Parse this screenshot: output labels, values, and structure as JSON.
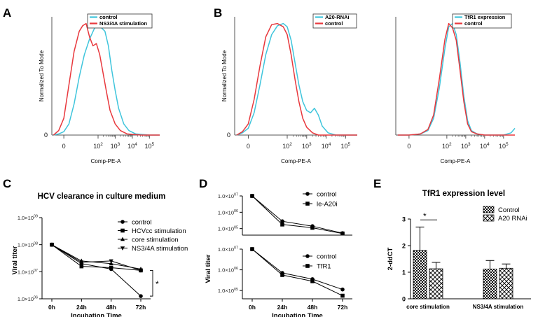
{
  "panel_labels": {
    "A": "A",
    "B": "B",
    "C": "C",
    "D": "D",
    "E": "E"
  },
  "colors": {
    "control_red": "#e8383d",
    "treatment_cyan": "#3fc5dc",
    "axis": "#555555",
    "ink": "#000000"
  },
  "chart_data": [
    {
      "id": "A",
      "type": "line",
      "title": "",
      "xlabel": "Comp-PE-A",
      "ylabel": "Normalized To Mode",
      "y_tick_label": "0",
      "x_ticks": [
        {
          "value": 0,
          "label": "0"
        },
        {
          "value": 2,
          "label": "10",
          "exp": "2"
        },
        {
          "value": 3,
          "label": "10",
          "exp": "3"
        },
        {
          "value": 4,
          "label": "10",
          "exp": "4"
        },
        {
          "value": 5,
          "label": "10",
          "exp": "5"
        }
      ],
      "xlim": [
        -0.7,
        5.6
      ],
      "ylim": [
        0,
        1.06
      ],
      "legend": [
        "control",
        "NS3/4A stimulation"
      ],
      "series": [
        {
          "name": "control",
          "color": "#3fc5dc",
          "x": [
            -0.6,
            -0.3,
            0.0,
            0.3,
            0.6,
            0.9,
            1.2,
            1.5,
            1.8,
            2.0,
            2.2,
            2.4,
            2.6,
            2.8,
            3.0,
            3.2,
            3.5,
            3.8,
            4.2,
            5.0,
            5.6
          ],
          "y": [
            0.0,
            0.01,
            0.03,
            0.1,
            0.28,
            0.52,
            0.72,
            0.86,
            0.96,
            1.0,
            0.96,
            0.93,
            0.8,
            0.58,
            0.4,
            0.24,
            0.1,
            0.04,
            0.01,
            0.0,
            0.0
          ]
        },
        {
          "name": "NS3/4A stimulation",
          "color": "#e8383d",
          "x": [
            -0.6,
            -0.3,
            0.0,
            0.3,
            0.6,
            0.9,
            1.1,
            1.3,
            1.5,
            1.7,
            1.9,
            2.1,
            2.3,
            2.5,
            2.7,
            3.0,
            3.3,
            3.7,
            4.5,
            5.6
          ],
          "y": [
            0.0,
            0.04,
            0.15,
            0.45,
            0.75,
            0.93,
            0.98,
            1.0,
            0.88,
            0.8,
            0.82,
            0.72,
            0.55,
            0.38,
            0.22,
            0.1,
            0.04,
            0.01,
            0.0,
            0.0
          ]
        }
      ]
    },
    {
      "id": "B-left",
      "type": "line",
      "title": "",
      "xlabel": "Comp-PE-A",
      "ylabel": "Normalized To Mode",
      "y_tick_label": "0",
      "x_ticks": [
        {
          "value": 0,
          "label": "0"
        },
        {
          "value": 2,
          "label": "10",
          "exp": "2"
        },
        {
          "value": 3,
          "label": "10",
          "exp": "3"
        },
        {
          "value": 4,
          "label": "10",
          "exp": "4"
        },
        {
          "value": 5,
          "label": "10",
          "exp": "5"
        }
      ],
      "xlim": [
        -0.7,
        5.6
      ],
      "ylim": [
        0,
        1.06
      ],
      "legend": [
        "A20-RNAi",
        "control"
      ],
      "series": [
        {
          "name": "A20-RNAi",
          "color": "#3fc5dc",
          "x": [
            -0.6,
            -0.3,
            0.0,
            0.3,
            0.6,
            0.9,
            1.2,
            1.5,
            1.8,
            2.0,
            2.2,
            2.4,
            2.6,
            2.8,
            3.0,
            3.2,
            3.4,
            3.6,
            3.8,
            4.1,
            4.5,
            5.6
          ],
          "y": [
            0.0,
            0.02,
            0.06,
            0.2,
            0.45,
            0.72,
            0.9,
            0.98,
            1.0,
            0.97,
            0.85,
            0.65,
            0.45,
            0.3,
            0.22,
            0.2,
            0.24,
            0.18,
            0.08,
            0.02,
            0.0,
            0.0
          ]
        },
        {
          "name": "control",
          "color": "#e8383d",
          "x": [
            -0.6,
            -0.3,
            0.0,
            0.3,
            0.6,
            0.9,
            1.2,
            1.5,
            1.8,
            2.0,
            2.2,
            2.4,
            2.6,
            2.8,
            3.0,
            3.3,
            3.6,
            4.2,
            5.6
          ],
          "y": [
            0.0,
            0.03,
            0.1,
            0.32,
            0.62,
            0.88,
            0.99,
            1.0,
            0.97,
            0.9,
            0.72,
            0.5,
            0.3,
            0.15,
            0.07,
            0.02,
            0.0,
            0.0,
            0.0
          ]
        }
      ]
    },
    {
      "id": "B-right",
      "type": "line",
      "title": "",
      "xlabel": "Comp-PE-A",
      "ylabel": "",
      "y_tick_label": "",
      "x_ticks": [
        {
          "value": 0,
          "label": "0"
        },
        {
          "value": 2,
          "label": "10",
          "exp": "2"
        },
        {
          "value": 3,
          "label": "10",
          "exp": "3"
        },
        {
          "value": 4,
          "label": "10",
          "exp": "4"
        },
        {
          "value": 5,
          "label": "10",
          "exp": "5"
        }
      ],
      "xlim": [
        -0.7,
        5.6
      ],
      "ylim": [
        0,
        1.06
      ],
      "legend": [
        "TfR1 expression",
        "control"
      ],
      "series": [
        {
          "name": "TfR1 expression",
          "color": "#3fc5dc",
          "x": [
            -0.6,
            0.0,
            0.6,
            1.0,
            1.3,
            1.6,
            1.9,
            2.1,
            2.3,
            2.5,
            2.7,
            2.9,
            3.1,
            3.3,
            3.6,
            4.0,
            4.5,
            5.0,
            5.4,
            5.6
          ],
          "y": [
            0.0,
            0.0,
            0.01,
            0.04,
            0.15,
            0.42,
            0.78,
            0.97,
            1.0,
            0.9,
            0.65,
            0.35,
            0.13,
            0.04,
            0.01,
            0.0,
            0.0,
            0.0,
            0.02,
            0.06
          ]
        },
        {
          "name": "control",
          "color": "#e8383d",
          "x": [
            -0.6,
            0.0,
            0.6,
            1.0,
            1.3,
            1.6,
            1.9,
            2.1,
            2.3,
            2.5,
            2.7,
            2.9,
            3.1,
            3.3,
            3.6,
            4.0,
            5.6
          ],
          "y": [
            0.0,
            0.0,
            0.01,
            0.05,
            0.18,
            0.5,
            0.86,
            1.0,
            0.96,
            0.85,
            0.58,
            0.3,
            0.1,
            0.03,
            0.01,
            0.0,
            0.0
          ]
        }
      ]
    },
    {
      "id": "C",
      "type": "line",
      "title": "HCV clearance in culture medium",
      "xlabel": "Incubation Time",
      "ylabel": "Viral titer",
      "categories": [
        "0h",
        "24h",
        "48h",
        "72h"
      ],
      "y_ticks": [
        {
          "value": 6,
          "label": "1.0×10",
          "exp": "06"
        },
        {
          "value": 7,
          "label": "1.0×10",
          "exp": "07"
        },
        {
          "value": 8,
          "label": "1.0×10",
          "exp": "08"
        },
        {
          "value": 9,
          "label": "1.0×10",
          "exp": "09"
        }
      ],
      "ylim": [
        6,
        9
      ],
      "legend": [
        "control",
        "HCVcc stimulation",
        "core stimulation",
        "NS3/4A stimulation"
      ],
      "significance": "*",
      "series": [
        {
          "name": "control",
          "marker": "circle",
          "values": [
            8.0,
            7.3,
            7.1,
            6.1
          ]
        },
        {
          "name": "HCVcc stimulation",
          "marker": "square",
          "values": [
            8.0,
            7.2,
            7.15,
            7.05
          ]
        },
        {
          "name": "core stimulation",
          "marker": "triangle-up",
          "values": [
            8.0,
            7.4,
            7.3,
            7.1
          ]
        },
        {
          "name": "NS3/4A stimulation",
          "marker": "triangle-down",
          "values": [
            8.0,
            7.35,
            7.4,
            7.05
          ]
        }
      ]
    },
    {
      "id": "D-top",
      "type": "line",
      "title": "",
      "xlabel": "",
      "ylabel": "",
      "categories": [
        "0h",
        "24h",
        "48h",
        "72h"
      ],
      "y_ticks": [
        {
          "value": 5,
          "label": "1.0×10",
          "exp": "05"
        },
        {
          "value": 6,
          "label": "1.0×10",
          "exp": "06"
        },
        {
          "value": 7,
          "label": "1.0×10",
          "exp": "07"
        }
      ],
      "ylim": [
        4.6,
        7.0
      ],
      "legend": [
        "control",
        "le-A20i"
      ],
      "series": [
        {
          "name": "control",
          "marker": "circle",
          "values": [
            7.0,
            5.45,
            5.15,
            4.72
          ]
        },
        {
          "name": "le-A20i",
          "marker": "square",
          "values": [
            7.0,
            5.25,
            5.05,
            4.7
          ]
        }
      ]
    },
    {
      "id": "D-bottom",
      "type": "line",
      "title": "",
      "xlabel": "Incubation Time",
      "ylabel": "Viral titer",
      "categories": [
        "0h",
        "24h",
        "48h",
        "72h"
      ],
      "y_ticks": [
        {
          "value": 5,
          "label": "1.0×10",
          "exp": "05"
        },
        {
          "value": 6,
          "label": "1.0×10",
          "exp": "06"
        },
        {
          "value": 7,
          "label": "1.0×10",
          "exp": "07"
        }
      ],
      "ylim": [
        4.6,
        7.0
      ],
      "legend": [
        "control",
        "TfR1"
      ],
      "series": [
        {
          "name": "control",
          "marker": "circle",
          "values": [
            7.0,
            5.85,
            5.55,
            5.05
          ]
        },
        {
          "name": "TfR1",
          "marker": "square",
          "values": [
            7.0,
            5.75,
            5.45,
            4.75
          ]
        }
      ]
    },
    {
      "id": "E",
      "type": "bar",
      "title": "TfR1 expression level",
      "xlabel": "",
      "ylabel": "2-ddCT",
      "categories": [
        "core  stimulation",
        "NS3/4A stimulation"
      ],
      "y_ticks": [
        0,
        1,
        2,
        3
      ],
      "ylim": [
        0,
        3
      ],
      "legend": [
        "Control",
        "A20 RNAi"
      ],
      "significance": "*",
      "series": [
        {
          "name": "Control",
          "pattern": "dense-check",
          "values": [
            1.82,
            1.12
          ],
          "errors": [
            0.88,
            0.32
          ]
        },
        {
          "name": "A20 RNAi",
          "pattern": "open-check",
          "values": [
            1.13,
            1.15
          ],
          "errors": [
            0.24,
            0.16
          ]
        }
      ]
    }
  ]
}
